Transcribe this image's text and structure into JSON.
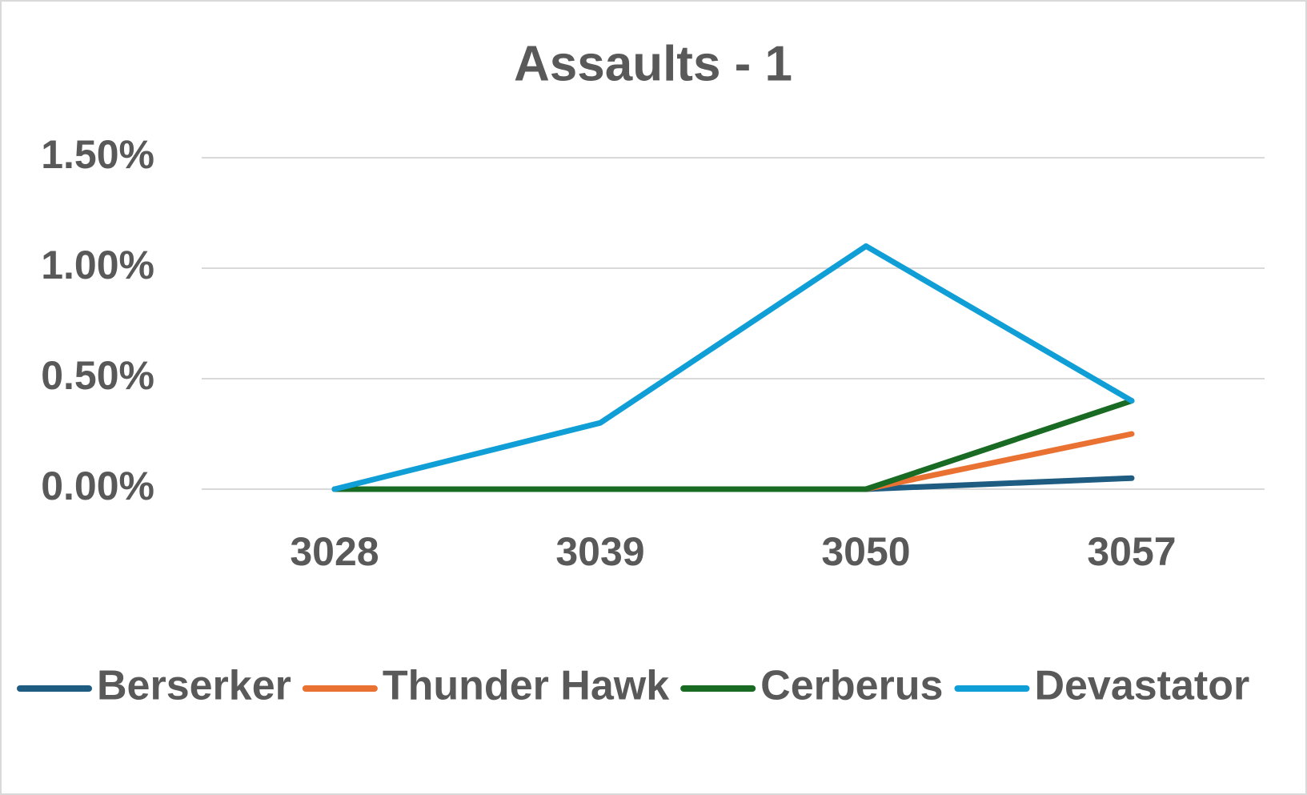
{
  "chart_data": {
    "type": "line",
    "title": "Assaults - 1",
    "categories": [
      "3028",
      "3039",
      "3050",
      "3057"
    ],
    "series": [
      {
        "name": "Berserker",
        "color": "#1f5c82",
        "values": [
          0,
          0,
          0,
          0.05
        ]
      },
      {
        "name": "Thunder Hawk",
        "color": "#e97132",
        "values": [
          0,
          0,
          0,
          0.25
        ]
      },
      {
        "name": "Cerberus",
        "color": "#196b24",
        "values": [
          0,
          0,
          0,
          0.4
        ]
      },
      {
        "name": "Devastator",
        "color": "#0f9ed5",
        "values": [
          0,
          0.3,
          1.1,
          0.4
        ]
      }
    ],
    "ylim": [
      0,
      1.5
    ],
    "yticks": [
      {
        "value": 0,
        "label": "0.00%"
      },
      {
        "value": 0.5,
        "label": "0.50%"
      },
      {
        "value": 1,
        "label": "1.00%"
      },
      {
        "value": 1.5,
        "label": "1.50%"
      }
    ],
    "grid": true,
    "legend": "bottom"
  }
}
